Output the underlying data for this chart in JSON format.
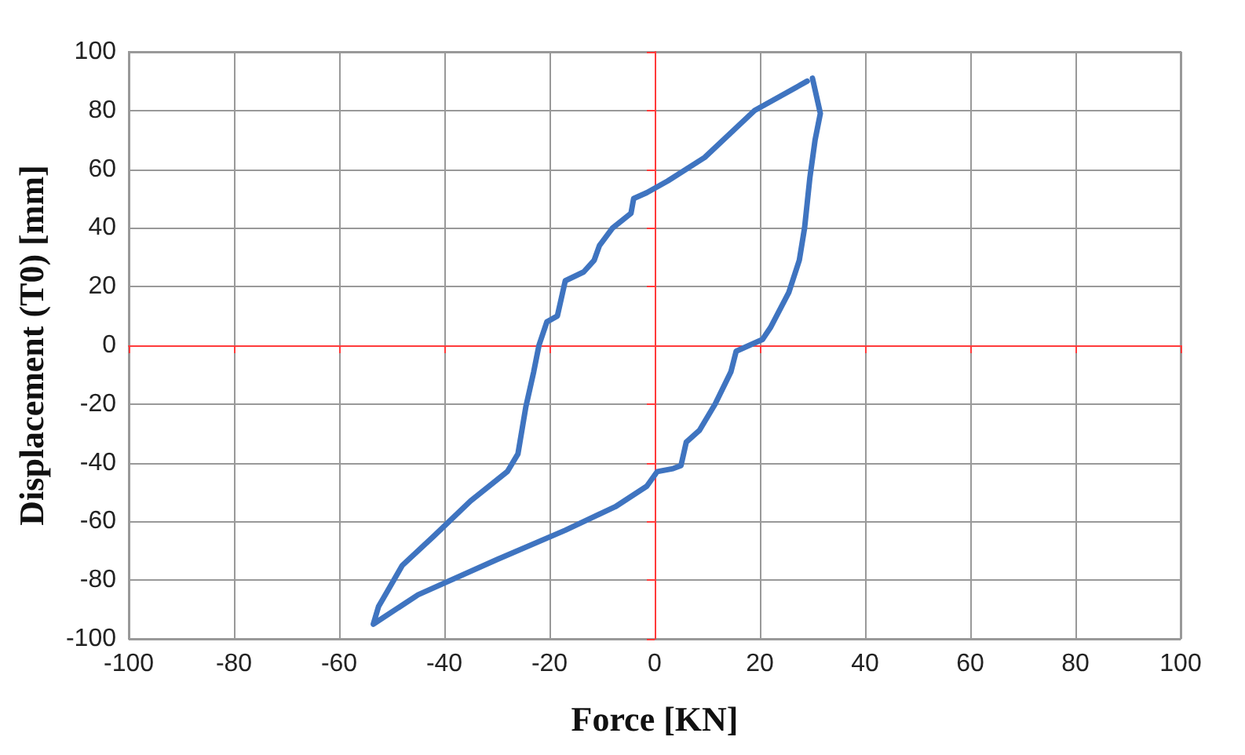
{
  "chart_data": {
    "type": "line",
    "xlabel": "Force [KN]",
    "ylabel": "Displacement (T0) [mm]",
    "xlim": [
      -100,
      100
    ],
    "xticks": [
      -100,
      -80,
      -60,
      -40,
      -20,
      0,
      20,
      40,
      60,
      80,
      100
    ],
    "ylim": [
      -100,
      100
    ],
    "yticks": [
      -100,
      -80,
      -60,
      -40,
      -20,
      0,
      20,
      40,
      60,
      80,
      100
    ],
    "grid": true,
    "marker": "none",
    "line_style": "solid",
    "series": [
      {
        "color": "#3f74c0",
        "x": [
          30,
          31.5,
          30.5,
          29.5,
          28.5,
          27.5,
          25.5,
          22,
          20.5,
          15.5,
          14.5,
          11.5,
          8.5,
          6,
          5,
          3.5,
          0.5,
          -1.5,
          -7.5,
          -17,
          -30,
          -45,
          -53.5,
          -52.5,
          -48,
          -42,
          -35,
          -28,
          -26,
          -24.5,
          -23,
          -22,
          -20.5,
          -18.5,
          -17,
          -13.5,
          -11.5,
          -10.5,
          -8,
          -4.5,
          -4,
          -1.5,
          2.5,
          9.5,
          19,
          29
        ],
        "values": [
          91,
          79,
          70,
          57,
          40,
          29,
          18,
          6,
          2,
          -2,
          -9,
          -20,
          -29,
          -33,
          -41,
          -42,
          -43,
          -48,
          -55,
          -63,
          -73,
          -85,
          -95,
          -89,
          -75,
          -65,
          -53,
          -43,
          -37,
          -21,
          -9,
          0,
          8,
          10,
          22,
          25,
          29,
          34,
          40,
          45,
          50,
          52,
          56,
          64,
          80,
          90
        ]
      }
    ]
  }
}
